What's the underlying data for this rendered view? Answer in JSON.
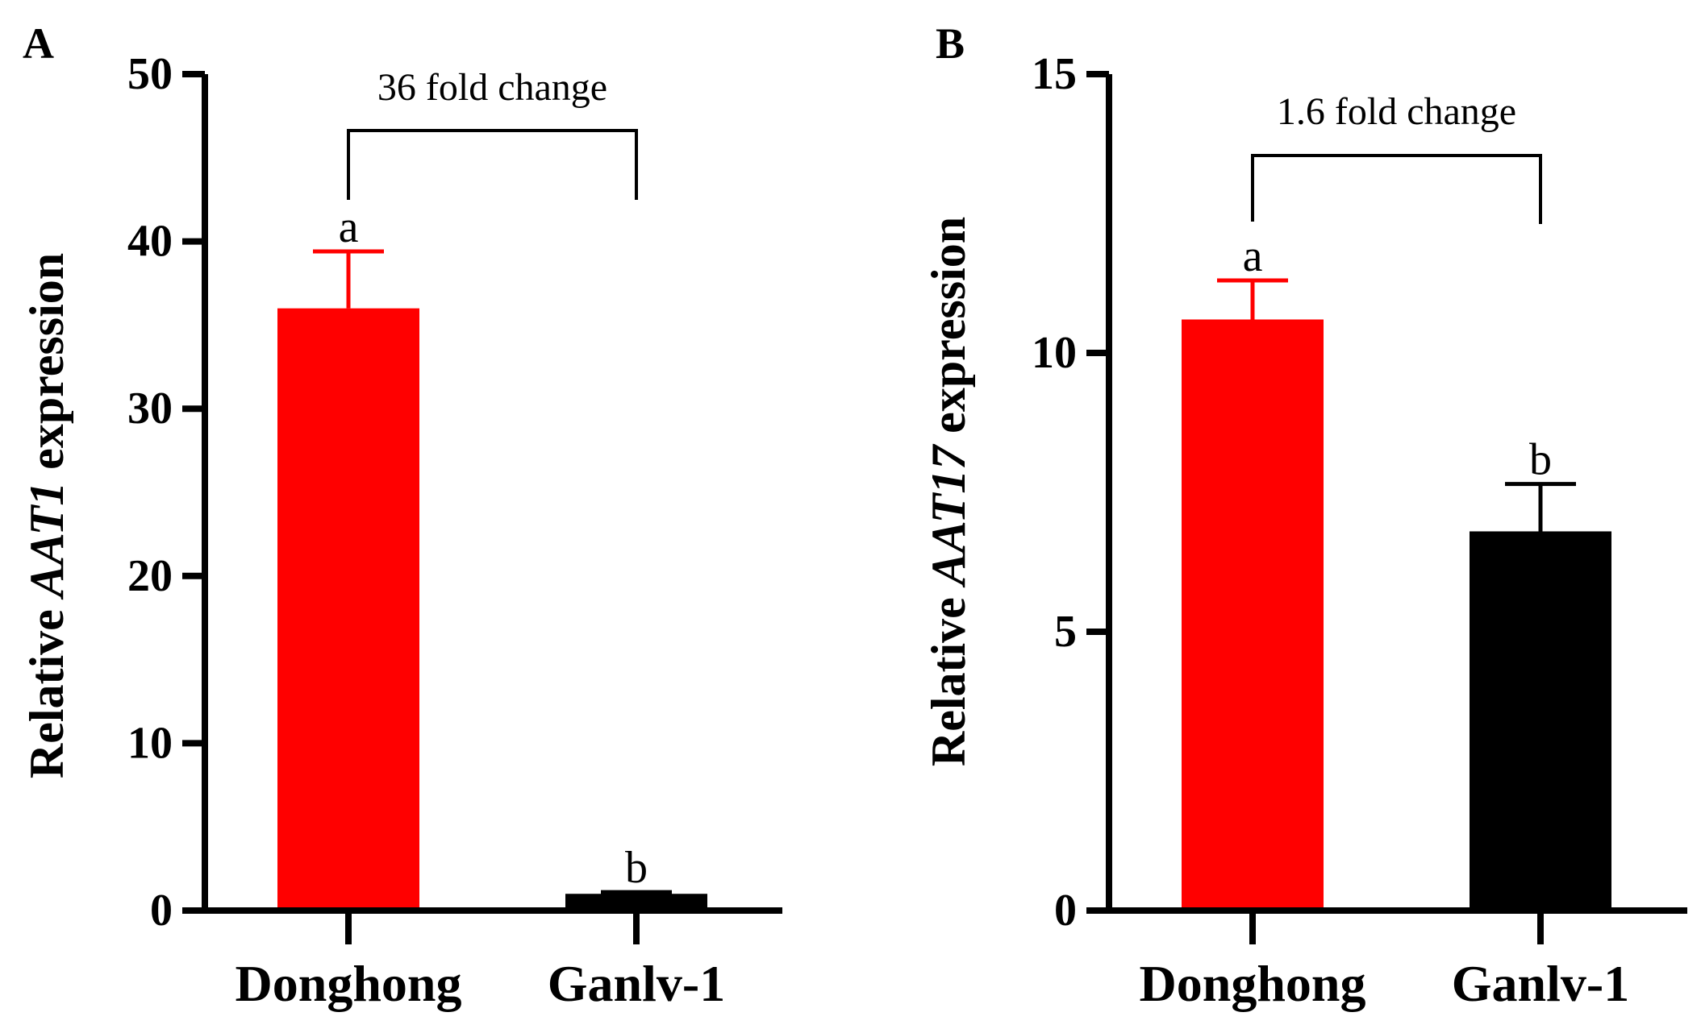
{
  "chart_data": [
    {
      "type": "bar",
      "panel_label": "A",
      "title": "",
      "xlabel": "",
      "ylabel": {
        "prefix": "Relative ",
        "gene": "AAT1",
        "suffix": " expression"
      },
      "ylim": [
        0,
        50
      ],
      "yticks": [
        0,
        10,
        20,
        30,
        40,
        50
      ],
      "categories": [
        "Donghong",
        "Ganlv-1"
      ],
      "values": [
        36.0,
        1.0
      ],
      "errors": [
        3.4,
        0.1
      ],
      "bar_colors": [
        "#ff0000",
        "#000000"
      ],
      "significance_letters": [
        "a",
        "b"
      ],
      "comparison": {
        "label": "36 fold change",
        "from": 0,
        "to": 1
      }
    },
    {
      "type": "bar",
      "panel_label": "B",
      "title": "",
      "xlabel": "",
      "ylabel": {
        "prefix": "Relative ",
        "gene": "AAT17",
        "suffix": " expression"
      },
      "ylim": [
        0,
        15
      ],
      "yticks": [
        0,
        5,
        10,
        15
      ],
      "categories": [
        "Donghong",
        "Ganlv-1"
      ],
      "values": [
        10.6,
        6.8
      ],
      "errors": [
        0.7,
        0.85
      ],
      "bar_colors": [
        "#ff0000",
        "#000000"
      ],
      "significance_letters": [
        "a",
        "b"
      ],
      "comparison": {
        "label": "1.6 fold change",
        "from": 0,
        "to": 1
      }
    }
  ]
}
